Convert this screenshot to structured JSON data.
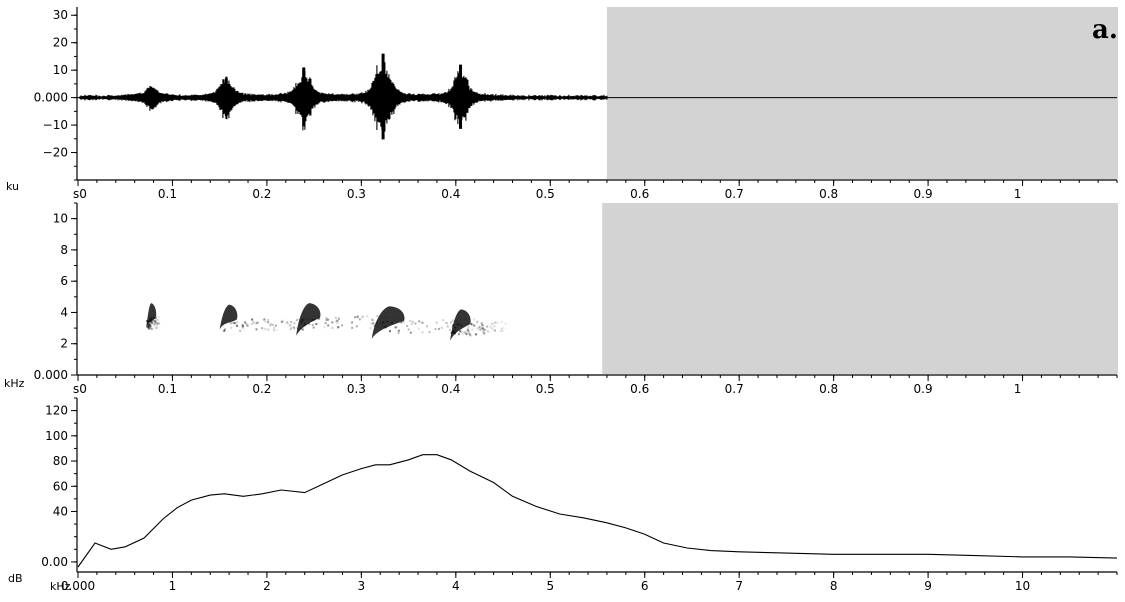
{
  "figure": {
    "panel_label": "a."
  },
  "chart_data": [
    {
      "type": "line",
      "name_hint": "waveform",
      "ylabel": "ku",
      "ylim": [
        -30,
        33
      ],
      "xlim": [
        0,
        1.1
      ],
      "y_ticks": [
        {
          "v": 30,
          "label": "30"
        },
        {
          "v": 20,
          "label": "20"
        },
        {
          "v": 10,
          "label": "10"
        },
        {
          "v": 0,
          "label": "0.000"
        },
        {
          "v": -10,
          "label": "−10"
        },
        {
          "v": -20,
          "label": "−20"
        }
      ],
      "x_ticks": [
        {
          "v": 0,
          "label": "s0"
        },
        {
          "v": 0.1,
          "label": "0.1"
        },
        {
          "v": 0.2,
          "label": "0.2"
        },
        {
          "v": 0.3,
          "label": "0.3"
        },
        {
          "v": 0.4,
          "label": "0.4"
        },
        {
          "v": 0.5,
          "label": "0.5"
        },
        {
          "v": 0.6,
          "label": "0.6"
        },
        {
          "v": 0.7,
          "label": "0.7"
        },
        {
          "v": 0.8,
          "label": "0.8"
        },
        {
          "v": 0.9,
          "label": "0.9"
        },
        {
          "v": 1.0,
          "label": "1"
        }
      ],
      "bursts": [
        {
          "t": 0.078,
          "amp": 3.5,
          "width": 0.009
        },
        {
          "t": 0.157,
          "amp": 7,
          "width": 0.012
        },
        {
          "t": 0.239,
          "amp": 11,
          "width": 0.013
        },
        {
          "t": 0.323,
          "amp": 16,
          "width": 0.016
        },
        {
          "t": 0.405,
          "amp": 12,
          "width": 0.013
        }
      ],
      "signal_end": 0.56,
      "shaded_region": [
        0.56,
        1.1
      ],
      "grid": false
    },
    {
      "type": "heatmap",
      "name_hint": "spectrogram",
      "ylabel": "kHz",
      "ylim": [
        0,
        11
      ],
      "xlim": [
        0,
        1.1
      ],
      "y_ticks": [
        {
          "v": 10,
          "label": "10"
        },
        {
          "v": 8,
          "label": "8"
        },
        {
          "v": 6,
          "label": "6"
        },
        {
          "v": 4,
          "label": "4"
        },
        {
          "v": 2,
          "label": "2"
        },
        {
          "v": 0,
          "label": "0.000"
        }
      ],
      "x_ticks": [
        {
          "v": 0,
          "label": "s0"
        },
        {
          "v": 0.1,
          "label": "0.1"
        },
        {
          "v": 0.2,
          "label": "0.2"
        },
        {
          "v": 0.3,
          "label": "0.3"
        },
        {
          "v": 0.4,
          "label": "0.4"
        },
        {
          "v": 0.5,
          "label": "0.5"
        },
        {
          "v": 0.6,
          "label": "0.6"
        },
        {
          "v": 0.7,
          "label": "0.7"
        },
        {
          "v": 0.8,
          "label": "0.8"
        },
        {
          "v": 0.9,
          "label": "0.9"
        },
        {
          "v": 1.0,
          "label": "1"
        }
      ],
      "notes": [
        {
          "t_start": 0.072,
          "t_end": 0.082,
          "f_low": 3.0,
          "f_high": 4.6,
          "tail_end": 0.085
        },
        {
          "t_start": 0.15,
          "t_end": 0.168,
          "f_low": 2.9,
          "f_high": 4.5,
          "tail_end": 0.245
        },
        {
          "t_start": 0.231,
          "t_end": 0.256,
          "f_low": 2.5,
          "f_high": 4.6,
          "tail_end": 0.34
        },
        {
          "t_start": 0.311,
          "t_end": 0.345,
          "f_low": 2.3,
          "f_high": 4.4,
          "tail_end": 0.43
        },
        {
          "t_start": 0.394,
          "t_end": 0.415,
          "f_low": 2.2,
          "f_high": 4.2,
          "tail_end": 0.455
        }
      ],
      "shaded_region": [
        0.555,
        1.1
      ],
      "grid": false
    },
    {
      "type": "line",
      "name_hint": "spectrum",
      "ylabel": "dB",
      "xlabel": "kHz",
      "xlim": [
        0,
        11
      ],
      "ylim": [
        -8,
        130
      ],
      "y_ticks": [
        {
          "v": 120,
          "label": "120"
        },
        {
          "v": 100,
          "label": "100"
        },
        {
          "v": 80,
          "label": "80"
        },
        {
          "v": 60,
          "label": "60"
        },
        {
          "v": 40,
          "label": "40"
        },
        {
          "v": 0,
          "label": "0.00"
        }
      ],
      "x_ticks": [
        {
          "v": 0,
          "label": "0.000"
        },
        {
          "v": 1,
          "label": "1"
        },
        {
          "v": 2,
          "label": "2"
        },
        {
          "v": 3,
          "label": "3"
        },
        {
          "v": 4,
          "label": "4"
        },
        {
          "v": 5,
          "label": "5"
        },
        {
          "v": 6,
          "label": "6"
        },
        {
          "v": 7,
          "label": "7"
        },
        {
          "v": 8,
          "label": "8"
        },
        {
          "v": 9,
          "label": "9"
        },
        {
          "v": 10,
          "label": "10"
        }
      ],
      "x": [
        0,
        0.18,
        0.35,
        0.5,
        0.7,
        0.9,
        1.05,
        1.2,
        1.4,
        1.55,
        1.75,
        1.95,
        2.15,
        2.4,
        2.6,
        2.8,
        3.0,
        3.15,
        3.3,
        3.5,
        3.65,
        3.8,
        3.95,
        4.15,
        4.4,
        4.6,
        4.85,
        5.1,
        5.35,
        5.6,
        5.8,
        6.0,
        6.2,
        6.45,
        6.7,
        7.0,
        7.5,
        8.0,
        8.5,
        9.0,
        9.5,
        10.0,
        10.5,
        11.0
      ],
      "y": [
        -4,
        15,
        10,
        12,
        19,
        34,
        43,
        49,
        53,
        54,
        52,
        54,
        57,
        55,
        62,
        69,
        74,
        77,
        77,
        81,
        85,
        85,
        81,
        72,
        63,
        52,
        44,
        38,
        35,
        31,
        27,
        22,
        15,
        11,
        9,
        8,
        7,
        6,
        6,
        6,
        5,
        4,
        4,
        3
      ],
      "grid": false
    }
  ]
}
